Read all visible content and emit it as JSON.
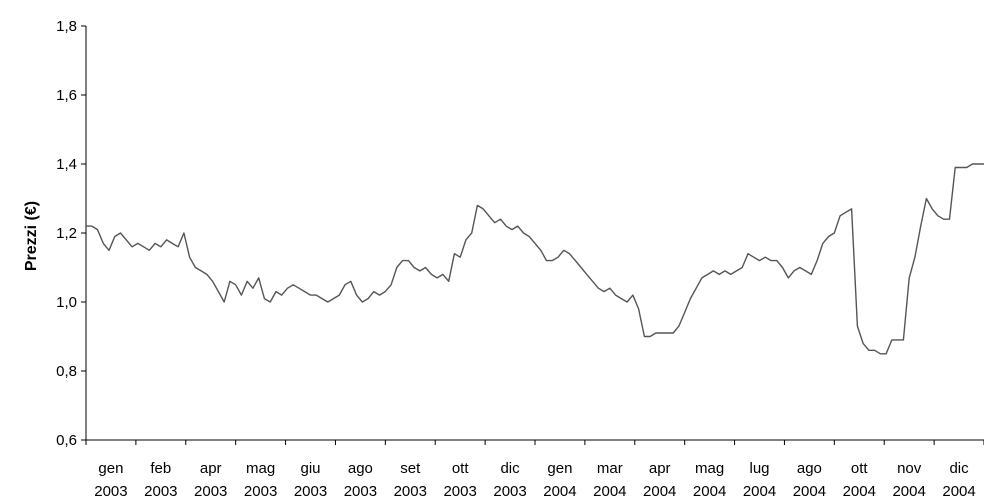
{
  "chart_data": {
    "type": "line",
    "title": "",
    "xlabel": "",
    "ylabel": "Prezzi (€)",
    "ylim": [
      0.6,
      1.8
    ],
    "y_ticks": [
      "0,6",
      "0,8",
      "1,0",
      "1,2",
      "1,4",
      "1,6",
      "1,8"
    ],
    "x_ticks": [
      {
        "month": "gen",
        "year": "2003"
      },
      {
        "month": "feb",
        "year": "2003"
      },
      {
        "month": "apr",
        "year": "2003"
      },
      {
        "month": "mag",
        "year": "2003"
      },
      {
        "month": "giu",
        "year": "2003"
      },
      {
        "month": "ago",
        "year": "2003"
      },
      {
        "month": "set",
        "year": "2003"
      },
      {
        "month": "ott",
        "year": "2003"
      },
      {
        "month": "dic",
        "year": "2003"
      },
      {
        "month": "gen",
        "year": "2004"
      },
      {
        "month": "mar",
        "year": "2004"
      },
      {
        "month": "apr",
        "year": "2004"
      },
      {
        "month": "mag",
        "year": "2004"
      },
      {
        "month": "lug",
        "year": "2004"
      },
      {
        "month": "ago",
        "year": "2004"
      },
      {
        "month": "ott",
        "year": "2004"
      },
      {
        "month": "nov",
        "year": "2004"
      },
      {
        "month": "dic",
        "year": "2004"
      }
    ],
    "grid": false,
    "legend": "none",
    "line_color": "#555555",
    "series": [
      {
        "values": [
          1.22,
          1.22,
          1.21,
          1.17,
          1.15,
          1.19,
          1.2,
          1.18,
          1.16,
          1.17,
          1.16,
          1.15,
          1.17,
          1.16,
          1.18,
          1.17,
          1.16,
          1.2,
          1.13,
          1.1,
          1.09,
          1.08,
          1.06,
          1.03,
          1.0,
          1.06,
          1.05,
          1.02,
          1.06,
          1.04,
          1.07,
          1.01,
          1.0,
          1.03,
          1.02,
          1.04,
          1.05,
          1.04,
          1.03,
          1.02,
          1.02,
          1.01,
          1.0,
          1.01,
          1.02,
          1.05,
          1.06,
          1.02,
          1.0,
          1.01,
          1.03,
          1.02,
          1.03,
          1.05,
          1.1,
          1.12,
          1.12,
          1.1,
          1.09,
          1.1,
          1.08,
          1.07,
          1.08,
          1.06,
          1.14,
          1.13,
          1.18,
          1.2,
          1.28,
          1.27,
          1.25,
          1.23,
          1.24,
          1.22,
          1.21,
          1.22,
          1.2,
          1.19,
          1.17,
          1.15,
          1.12,
          1.12,
          1.13,
          1.15,
          1.14,
          1.12,
          1.1,
          1.08,
          1.06,
          1.04,
          1.03,
          1.04,
          1.02,
          1.01,
          1.0,
          1.02,
          0.98,
          0.9,
          0.9,
          0.91,
          0.91,
          0.91,
          0.91,
          0.93,
          0.97,
          1.01,
          1.04,
          1.07,
          1.08,
          1.09,
          1.08,
          1.09,
          1.08,
          1.09,
          1.1,
          1.14,
          1.13,
          1.12,
          1.13,
          1.12,
          1.12,
          1.1,
          1.07,
          1.09,
          1.1,
          1.09,
          1.08,
          1.12,
          1.17,
          1.19,
          1.2,
          1.25,
          1.26,
          1.27,
          0.93,
          0.88,
          0.86,
          0.86,
          0.85,
          0.85,
          0.89,
          0.89,
          0.89,
          1.07,
          1.13,
          1.22,
          1.3,
          1.27,
          1.25,
          1.24,
          1.24,
          1.39,
          1.39,
          1.39,
          1.4,
          1.4,
          1.4
        ]
      }
    ]
  }
}
